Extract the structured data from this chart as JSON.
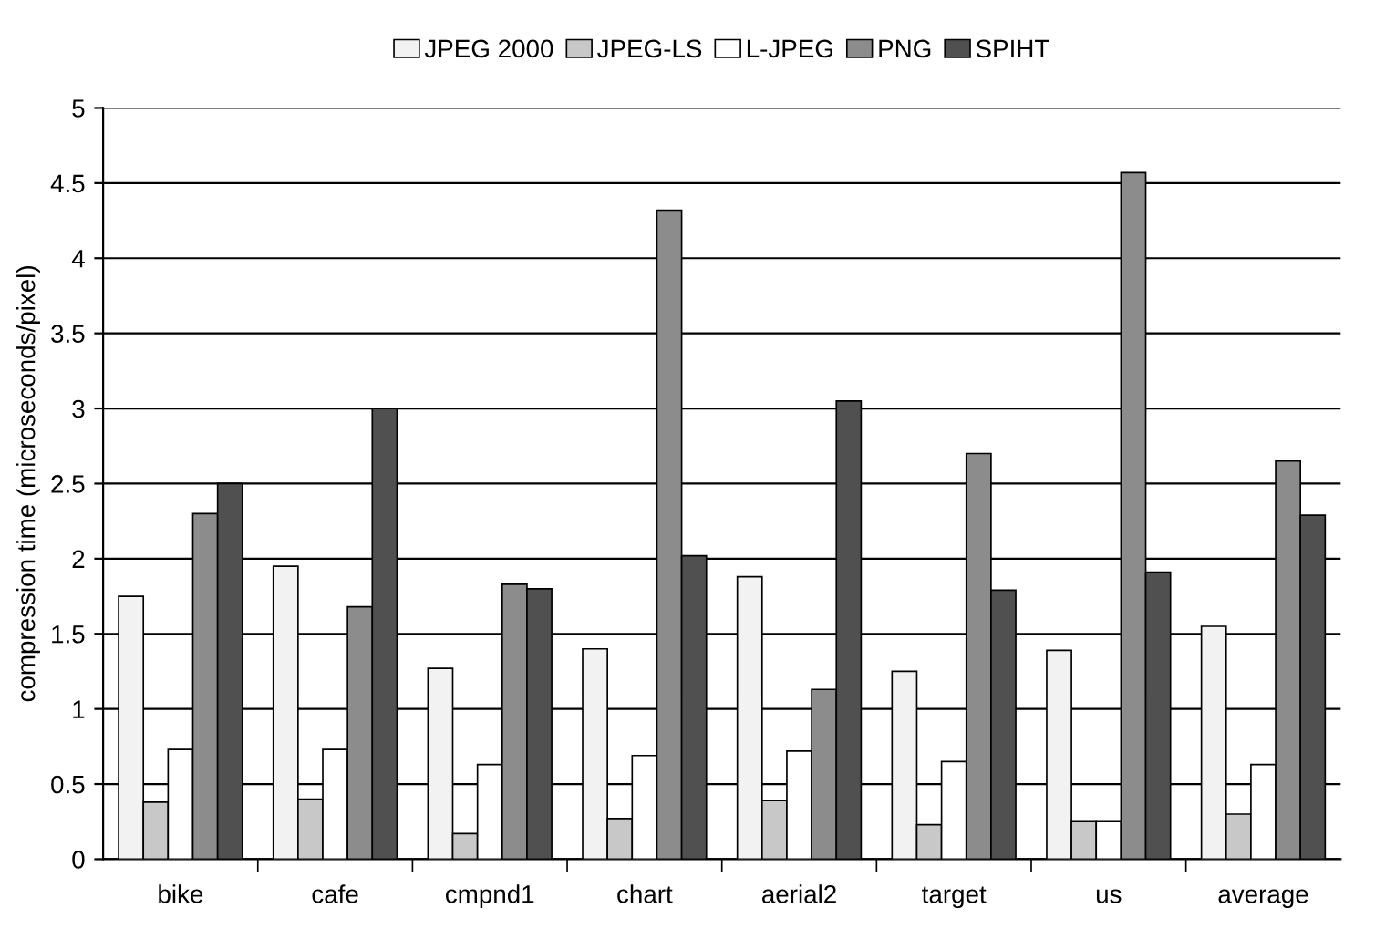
{
  "chart_data": {
    "type": "bar",
    "ylabel": "compression time (microseconds/pixel)",
    "categories": [
      "bike",
      "cafe",
      "cmpnd1",
      "chart",
      "aerial2",
      "target",
      "us",
      "average"
    ],
    "series": [
      {
        "name": "JPEG 2000",
        "color": "#f2f2f2",
        "values": [
          1.75,
          1.95,
          1.27,
          1.4,
          1.88,
          1.25,
          1.39,
          1.55
        ]
      },
      {
        "name": "JPEG-LS",
        "color": "#c8c8c8",
        "values": [
          0.38,
          0.4,
          0.17,
          0.27,
          0.39,
          0.23,
          0.25,
          0.3
        ]
      },
      {
        "name": "L-JPEG",
        "color": "#ffffff",
        "values": [
          0.73,
          0.73,
          0.63,
          0.69,
          0.72,
          0.65,
          0.25,
          0.63
        ]
      },
      {
        "name": "PNG",
        "color": "#8c8c8c",
        "values": [
          2.3,
          1.68,
          1.83,
          4.32,
          1.13,
          2.7,
          4.57,
          2.65
        ]
      },
      {
        "name": "SPIHT",
        "color": "#505050",
        "values": [
          2.5,
          3.0,
          1.8,
          2.02,
          3.05,
          1.79,
          1.91,
          2.29
        ]
      }
    ],
    "ylim": [
      0,
      5
    ],
    "yticks": [
      0,
      0.5,
      1,
      1.5,
      2,
      2.5,
      3,
      3.5,
      4,
      4.5,
      5
    ],
    "grid": "y",
    "legend": "top"
  }
}
